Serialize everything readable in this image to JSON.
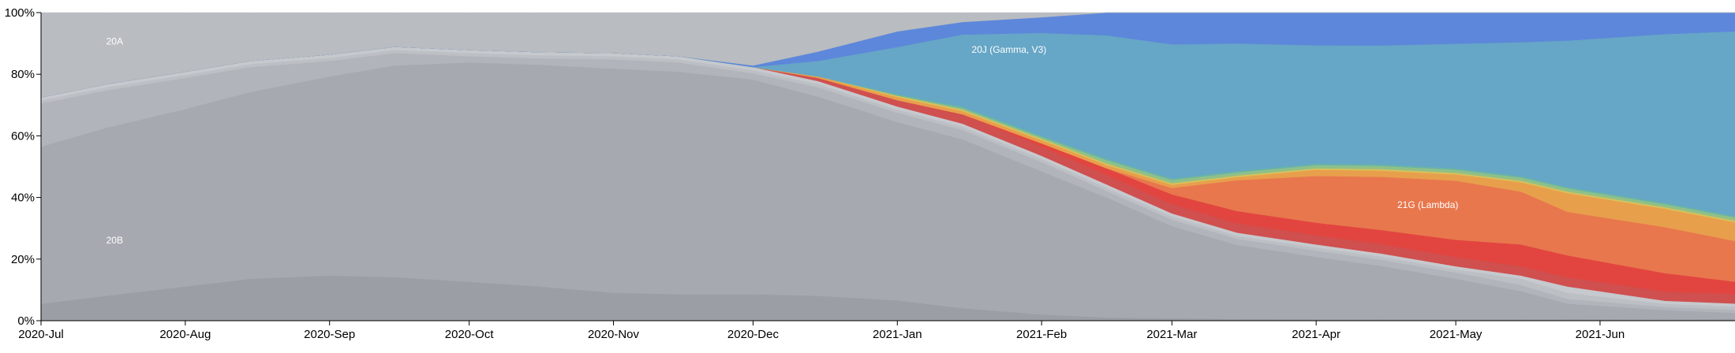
{
  "chart_data": {
    "type": "area",
    "stacked": true,
    "normalized": true,
    "x": [
      "2020-07-01",
      "2020-07-15",
      "2020-08-01",
      "2020-08-15",
      "2020-09-01",
      "2020-09-15",
      "2020-10-01",
      "2020-10-15",
      "2020-11-01",
      "2020-11-15",
      "2020-12-01",
      "2020-12-15",
      "2021-01-01",
      "2021-01-15",
      "2021-02-01",
      "2021-02-15",
      "2021-03-01",
      "2021-03-15",
      "2021-04-01",
      "2021-04-15",
      "2021-05-01",
      "2021-05-15",
      "2021-05-25",
      "2021-06-15",
      "2021-06-30"
    ],
    "ylim": [
      0,
      100
    ],
    "yticks": [
      "0%",
      "20%",
      "40%",
      "60%",
      "80%",
      "100%"
    ],
    "xticks": [
      {
        "date": "2020-07-01",
        "label": "2020-Jul"
      },
      {
        "date": "2020-08-01",
        "label": "2020-Aug"
      },
      {
        "date": "2020-09-01",
        "label": "2020-Sep"
      },
      {
        "date": "2020-10-01",
        "label": "2020-Oct"
      },
      {
        "date": "2020-11-01",
        "label": "2020-Nov"
      },
      {
        "date": "2020-12-01",
        "label": "2020-Dec"
      },
      {
        "date": "2021-01-01",
        "label": "2021-Jan"
      },
      {
        "date": "2021-02-01",
        "label": "2021-Feb"
      },
      {
        "date": "2021-03-01",
        "label": "2021-Mar"
      },
      {
        "date": "2021-04-01",
        "label": "2021-Apr"
      },
      {
        "date": "2021-05-01",
        "label": "2021-May"
      },
      {
        "date": "2021-06-01",
        "label": "2021-Jun"
      }
    ],
    "series": [
      {
        "color": "#9b9ea5",
        "values": [
          5.5,
          8,
          11,
          13.5,
          14.5,
          14,
          12.5,
          11,
          9,
          8.5,
          8.5,
          8,
          6.5,
          4,
          2,
          1,
          0.8,
          0.6,
          0.5,
          0.5,
          0.5,
          0.5,
          0.5,
          0.5,
          0.5
        ]
      },
      {
        "name": "20B",
        "color": "#a6a9b0",
        "values": [
          51,
          54,
          57,
          60,
          64,
          68,
          70.5,
          70.5,
          72,
          71.5,
          69,
          64,
          57,
          54,
          46,
          37,
          29,
          24,
          20,
          17,
          13,
          9,
          5,
          3,
          2
        ]
      },
      {
        "color": "#b1b4ba",
        "values": [
          14,
          12,
          10,
          8,
          5,
          4,
          2,
          2,
          3,
          3,
          2,
          3,
          3,
          3,
          3,
          2,
          2,
          2,
          2,
          2,
          2,
          2,
          1.5,
          1,
          1
        ]
      },
      {
        "color": "#bcbfc4",
        "values": [
          1,
          1,
          1,
          1,
          1,
          1,
          1,
          1,
          1,
          1,
          1,
          1,
          1,
          1,
          1,
          1,
          1,
          1,
          1,
          1,
          1,
          2,
          2,
          1,
          1
        ]
      },
      {
        "color": "#c6c9cd",
        "values": [
          1,
          1,
          1,
          1,
          1,
          1,
          1,
          1,
          1,
          1,
          1,
          1,
          1,
          1,
          1,
          1,
          1,
          1,
          1,
          1,
          1,
          1,
          2,
          1,
          1
        ]
      },
      {
        "color": "#d04f4f",
        "values": [
          0,
          0,
          0,
          0,
          0,
          0,
          0,
          0,
          0,
          0,
          0,
          1,
          2,
          3,
          3,
          3,
          3,
          3,
          3,
          3,
          3,
          3,
          3,
          3,
          3
        ]
      },
      {
        "color": "#e2453f",
        "values": [
          0,
          0,
          0,
          0,
          0,
          0,
          0,
          0,
          0,
          0,
          0,
          0,
          0,
          0,
          1,
          2,
          3,
          4,
          4,
          4.5,
          5.5,
          7,
          7,
          6,
          4
        ]
      },
      {
        "name": "21G (Lambda)",
        "color": "#e8774d",
        "values": [
          0,
          0,
          0,
          0,
          0,
          0,
          0,
          0,
          0,
          0,
          0,
          0,
          0,
          0,
          0,
          0,
          2,
          10,
          15,
          17,
          19,
          17,
          14,
          15,
          13
        ]
      },
      {
        "color": "#e89f4c",
        "values": [
          0,
          0,
          0,
          0,
          0,
          0,
          0,
          0,
          0,
          0,
          0,
          0.5,
          1,
          1,
          1,
          1,
          1,
          1,
          2,
          2,
          2,
          3,
          6,
          6,
          6
        ]
      },
      {
        "color": "#d8c15a",
        "values": [
          0,
          0,
          0,
          0,
          0,
          0,
          0,
          0,
          0,
          0,
          0,
          0,
          0.5,
          0.5,
          0.5,
          0.5,
          0.5,
          0.5,
          0.5,
          0.5,
          0.5,
          0.5,
          0.5,
          0.5,
          0.5
        ]
      },
      {
        "color": "#8fc088",
        "values": [
          0,
          0,
          0,
          0,
          0,
          0,
          0,
          0,
          0,
          0,
          0,
          0,
          0,
          0.5,
          0.5,
          1,
          1,
          1,
          1,
          1,
          1,
          1,
          1,
          1,
          1
        ]
      },
      {
        "color": "#69b3a8",
        "values": [
          0,
          0,
          0,
          0,
          0,
          0,
          0,
          0,
          0,
          0,
          0,
          0,
          0.5,
          0.5,
          0.5,
          0.5,
          0.5,
          0.5,
          0.5,
          0.5,
          0.5,
          0.5,
          0.5,
          0.5,
          0.5
        ]
      },
      {
        "name": "20J (Gamma, V3)",
        "color": "#66a6c6",
        "values": [
          0,
          0,
          0,
          0,
          0,
          0,
          0,
          0,
          0,
          0,
          0,
          5,
          15,
          23,
          33,
          38,
          42.2,
          41.4,
          38,
          38,
          40,
          43,
          47,
          55,
          59
        ]
      },
      {
        "color": "#5d87da",
        "values": [
          0,
          0,
          0,
          0,
          0,
          0,
          0,
          0,
          0,
          0,
          0.5,
          3,
          5,
          4,
          5,
          7,
          10,
          10,
          10.5,
          10.5,
          10,
          9.5,
          9,
          7,
          6
        ]
      },
      {
        "name": "20A",
        "color": "#b9bcc0",
        "values": [
          27.5,
          23,
          19,
          15.5,
          13.5,
          11,
          12,
          12.5,
          13,
          14,
          17,
          12.5,
          6,
          3,
          1.5,
          0,
          0,
          0,
          0,
          0,
          0,
          0,
          0,
          0,
          0
        ]
      }
    ]
  }
}
